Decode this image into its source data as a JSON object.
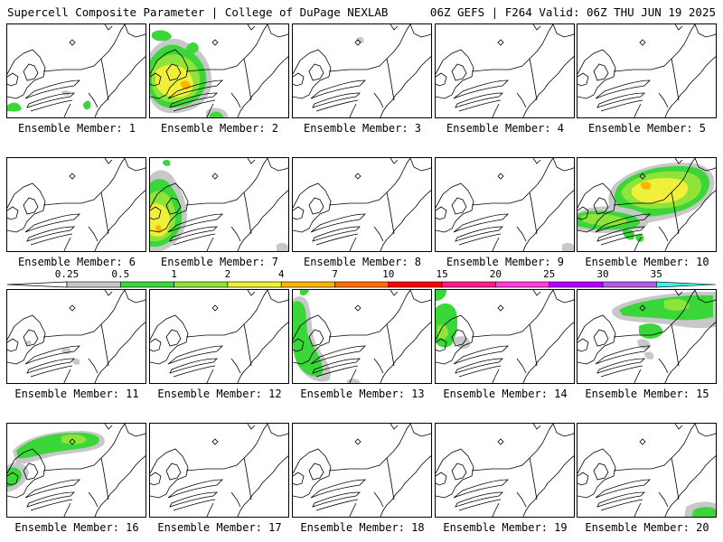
{
  "header": {
    "left": "Supercell Composite Parameter | College of DuPage NEXLAB",
    "right": "06Z GEFS | F264 Valid: 06Z THU JUN 19 2025"
  },
  "colors": {
    "c025": "#c8c8c8",
    "c05": "#3ad63a",
    "c1": "#8fe43a",
    "c2": "#f0f03a",
    "c4": "#ffb400",
    "c7": "#ff6e00",
    "c10": "#ff0000",
    "c15": "#ff1e8c",
    "c20": "#ff3cdc",
    "c25": "#b400ff",
    "c30": "#b45ae6",
    "c35": "#3cf0f0"
  },
  "colorbar": {
    "labels": [
      "0.25",
      "0.5",
      "1",
      "2",
      "4",
      "7",
      "10",
      "15",
      "20",
      "25",
      "30",
      "35"
    ]
  },
  "members": [
    {
      "label": "Ensemble Member: 1"
    },
    {
      "label": "Ensemble Member: 2"
    },
    {
      "label": "Ensemble Member: 3"
    },
    {
      "label": "Ensemble Member: 4"
    },
    {
      "label": "Ensemble Member: 5"
    },
    {
      "label": "Ensemble Member: 6"
    },
    {
      "label": "Ensemble Member: 7"
    },
    {
      "label": "Ensemble Member: 8"
    },
    {
      "label": "Ensemble Member: 9"
    },
    {
      "label": "Ensemble Member: 10"
    },
    {
      "label": "Ensemble Member: 11"
    },
    {
      "label": "Ensemble Member: 12"
    },
    {
      "label": "Ensemble Member: 13"
    },
    {
      "label": "Ensemble Member: 14"
    },
    {
      "label": "Ensemble Member: 15"
    },
    {
      "label": "Ensemble Member: 16"
    },
    {
      "label": "Ensemble Member: 17"
    },
    {
      "label": "Ensemble Member: 18"
    },
    {
      "label": "Ensemble Member: 19"
    },
    {
      "label": "Ensemble Member: 20"
    }
  ]
}
